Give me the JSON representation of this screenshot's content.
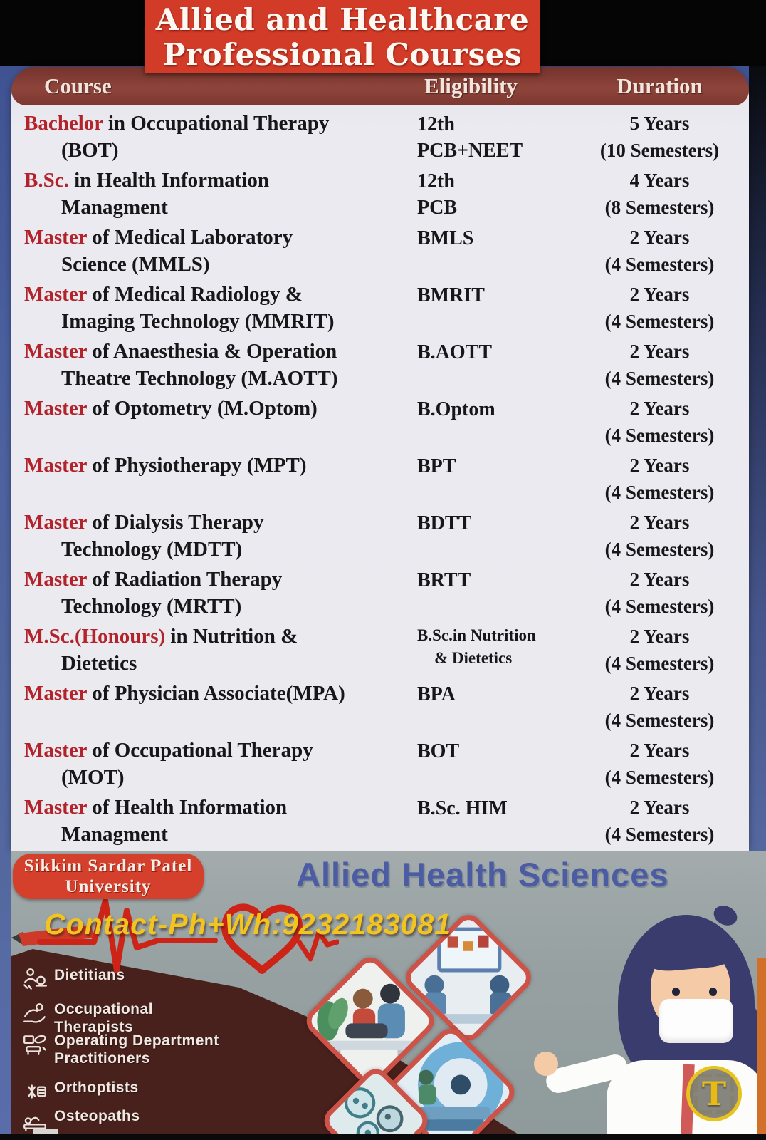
{
  "title": {
    "line1": "Allied and Healthcare",
    "line2": "Professional Courses"
  },
  "table": {
    "headers": {
      "course": "Course",
      "eligibility": "Eligibility",
      "duration": "Duration"
    },
    "rows": [
      {
        "red": "Bachelor",
        "black": " in Occupational Therapy",
        "line2": "(BOT)",
        "elig1": "12th",
        "elig2": "PCB+NEET",
        "dur1": "5 Years",
        "dur2": "(10 Semesters)"
      },
      {
        "red": "B.Sc.",
        "black": " in Health Information",
        "line2": "Managment",
        "elig1": "12th",
        "elig2": "PCB",
        "dur1": "4 Years",
        "dur2": "(8 Semesters)"
      },
      {
        "red": "Master",
        "black": " of Medical Laboratory",
        "line2": "Science (MMLS)",
        "elig1": "BMLS",
        "elig2": "",
        "dur1": "2 Years",
        "dur2": "(4 Semesters)"
      },
      {
        "red": "Master",
        "black": " of Medical Radiology &",
        "line2": "Imaging Technology (MMRIT)",
        "elig1": "BMRIT",
        "elig2": "",
        "dur1": "2 Years",
        "dur2": "(4 Semesters)"
      },
      {
        "red": "Master",
        "black": " of Anaesthesia & Operation",
        "line2": "Theatre Technology (M.AOTT)",
        "elig1": "B.AOTT",
        "elig2": "",
        "dur1": "2 Years",
        "dur2": "(4 Semesters)"
      },
      {
        "red": "Master",
        "black": " of Optometry (M.Optom)",
        "line2": "",
        "elig1": "B.Optom",
        "elig2": "",
        "dur1": "2 Years",
        "dur2": "(4 Semesters)"
      },
      {
        "red": "Master",
        "black": " of Physiotherapy (MPT)",
        "line2": "",
        "elig1": "BPT",
        "elig2": "",
        "dur1": "2 Years",
        "dur2": "(4 Semesters)"
      },
      {
        "red": "Master",
        "black": " of Dialysis Therapy",
        "line2": "Technology (MDTT)",
        "elig1": "BDTT",
        "elig2": "",
        "dur1": "2 Years",
        "dur2": "(4 Semesters)"
      },
      {
        "red": "Master",
        "black": " of Radiation Therapy",
        "line2": "Technology (MRTT)",
        "elig1": "BRTT",
        "elig2": "",
        "dur1": "2 Years",
        "dur2": "(4 Semesters)"
      },
      {
        "red": "M.Sc.(Honours)",
        "black": " in Nutrition &",
        "line2": "Dietetics",
        "elig1": "B.Sc.in Nutrition",
        "elig2": "& Dietetics",
        "dur1": "2 Years",
        "dur2": "(4 Semesters)"
      },
      {
        "red": "Master",
        "black": " of Physician Associate(MPA)",
        "line2": "",
        "elig1": "BPA",
        "elig2": "",
        "dur1": "2 Years",
        "dur2": "(4 Semesters)"
      },
      {
        "red": "Master",
        "black": " of Occupational Therapy",
        "line2": "(MOT)",
        "elig1": "BOT",
        "elig2": "",
        "dur1": "2 Years",
        "dur2": "(4 Semesters)"
      },
      {
        "red": "Master",
        "black": " of Health Information",
        "line2": "Managment",
        "elig1": "B.Sc. HIM",
        "elig2": "",
        "dur1": "2 Years",
        "dur2": "(4 Semesters)"
      }
    ]
  },
  "footer": {
    "university": {
      "line1": "Sikkim Sardar Patel",
      "line2": "University"
    },
    "program": "Allied Health Sciences",
    "contact": "Contact-Ph+Wh:9232183081",
    "professions": [
      {
        "label": "Dietitians",
        "icon": "dietitian-icon"
      },
      {
        "label": "Occupational Therapists",
        "icon": "occupational-therapist-icon"
      },
      {
        "label": "Operating Department Practitioners",
        "icon": "operating-department-icon"
      },
      {
        "label": "Orthoptists",
        "icon": "orthoptist-icon"
      },
      {
        "label": "Osteopaths",
        "icon": "osteopath-icon"
      }
    ],
    "watermark": "T"
  },
  "colors": {
    "title_red": "#d23b28",
    "header_maroon": "#8d443b",
    "course_accent_red": "#b3232b",
    "panel_blue": "#4a5f9e",
    "footer_gray": "#97a1a2",
    "arrow_maroon": "#48201c",
    "contact_yellow": "#f2c41e",
    "program_blue": "#4c5ca3",
    "badge_red": "#d5402c",
    "edge_orange": "#d2702a"
  }
}
